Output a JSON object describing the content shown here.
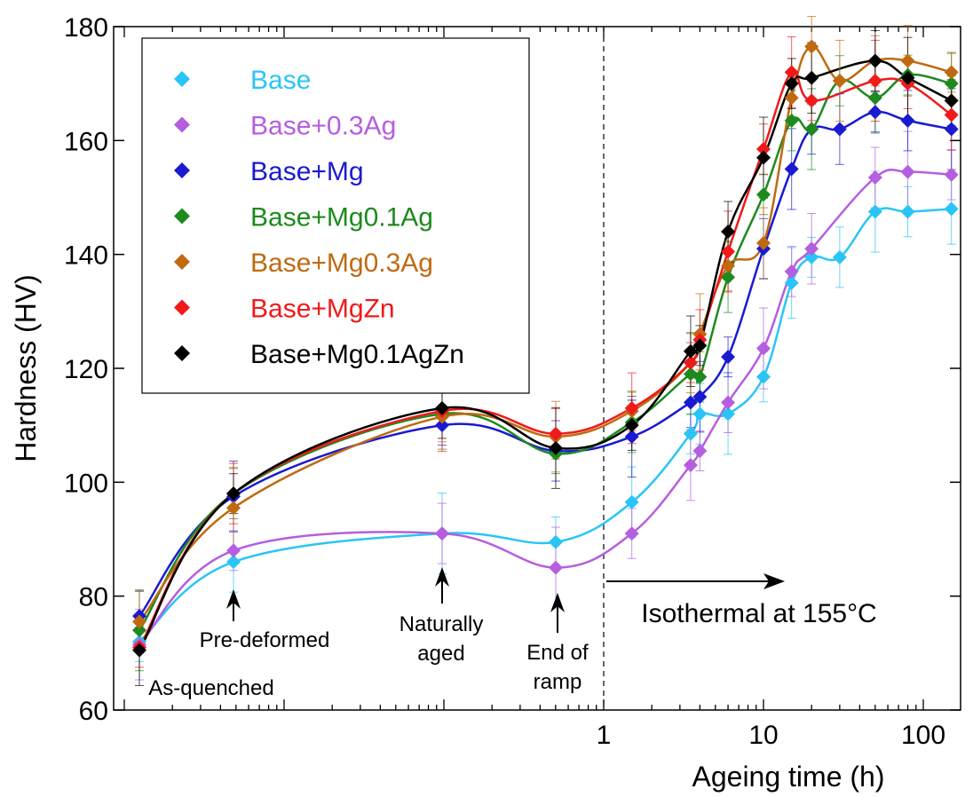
{
  "chart_data": {
    "type": "scatter",
    "xlabel": "Ageing time (h)",
    "ylabel": "Hardness (HV)",
    "ylim": [
      60,
      180
    ],
    "y_ticks": [
      "60",
      "80",
      "100",
      "120",
      "140",
      "160",
      "180"
    ],
    "x_ticks": [
      "1",
      "10",
      "100"
    ],
    "x_scale": "log (isothermal region)",
    "stage_labels": {
      "as_quenched": "As-quenched",
      "pre_deformed": "Pre-deformed",
      "naturally_aged_line1": "Naturally",
      "naturally_aged_line2": "aged",
      "end_ramp_line1": "End of",
      "end_ramp_line2": "ramp",
      "isothermal": "Isothermal at 155°C"
    },
    "legend_position": "top-left",
    "x_categories": [
      "As-quenched",
      "Pre-deformed",
      "Naturally aged",
      "End of ramp",
      "1.5",
      "3.5",
      "4",
      "6",
      "10",
      "15",
      "20",
      "30",
      "50",
      "80",
      "150"
    ],
    "series": [
      {
        "name": "Base",
        "color": "#29c5f6",
        "values": [
          72,
          86,
          91,
          89.5,
          96.5,
          108.5,
          112,
          112,
          118.5,
          135,
          139.5,
          139.5,
          147.5,
          147.5,
          148
        ]
      },
      {
        "name": "Base+0.3Ag",
        "color": "#b65ee0",
        "values": [
          71.5,
          88,
          91,
          85,
          91,
          103,
          105.5,
          114,
          123.5,
          137,
          141,
          null,
          153.5,
          154.5,
          154
        ]
      },
      {
        "name": "Base+Mg",
        "color": "#1a1ad0",
        "values": [
          76.5,
          97.5,
          110,
          105.5,
          108,
          114,
          115,
          122,
          141,
          155,
          162,
          162,
          165,
          163.5,
          162
        ]
      },
      {
        "name": "Base+Mg0.1Ag",
        "color": "#1d8a1d",
        "values": [
          74,
          98,
          112,
          105,
          110.5,
          119,
          118.5,
          136,
          150.5,
          163.5,
          162,
          170.5,
          167.5,
          171.5,
          170
        ]
      },
      {
        "name": "Base+Mg0.3Ag",
        "color": "#c06a10",
        "values": [
          75.5,
          95.5,
          111.5,
          108,
          112.5,
          121,
          126,
          138,
          142,
          167.5,
          176.5,
          170.5,
          174,
          174,
          172
        ]
      },
      {
        "name": "Base+MgZn",
        "color": "#f01a1a",
        "values": [
          71,
          98,
          112.5,
          108.5,
          113,
          121,
          125,
          140.5,
          158.5,
          172,
          167,
          null,
          170.5,
          170,
          164.5
        ]
      },
      {
        "name": "Base+Mg0.1AgZn",
        "color": "#000000",
        "values": [
          70.5,
          98,
          113,
          106,
          110,
          123,
          124,
          144,
          157,
          170,
          171,
          null,
          174,
          171,
          167
        ]
      }
    ]
  }
}
